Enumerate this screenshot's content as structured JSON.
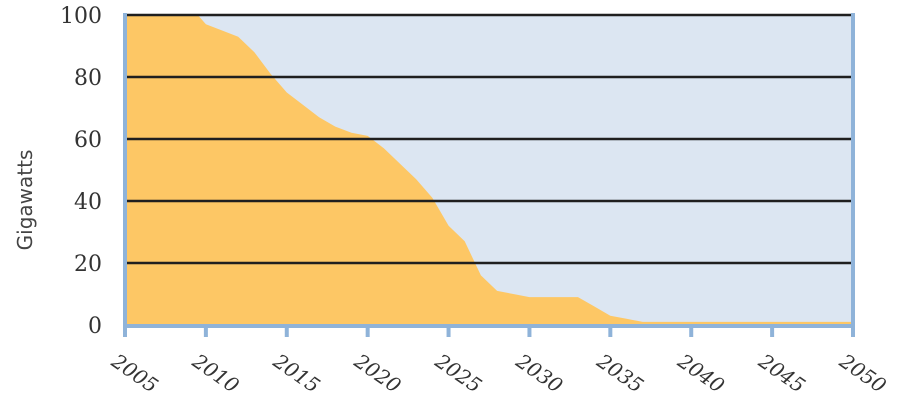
{
  "chart_data": {
    "type": "area",
    "ylabel": "Gigawatts",
    "xlabel": "",
    "title": "",
    "xlim": [
      2005,
      2050
    ],
    "ylim": [
      0,
      100
    ],
    "yticks": [
      0,
      20,
      40,
      60,
      80,
      100
    ],
    "xticks": [
      2005,
      2010,
      2015,
      2020,
      2025,
      2030,
      2035,
      2040,
      2045,
      2050
    ],
    "grid": "horizontal",
    "colors": {
      "area": "#FDC765",
      "background": "#DCE6F2",
      "axis": "#8FB3D9",
      "grid": "#1F1F1F"
    },
    "series": [
      {
        "x": [
          2005,
          2009.5,
          2010,
          2011,
          2012,
          2013,
          2014,
          2015,
          2016,
          2017,
          2018,
          2019,
          2020,
          2021,
          2022,
          2023,
          2024,
          2025,
          2026,
          2027,
          2028,
          2029,
          2030,
          2031,
          2032,
          2033,
          2034,
          2035,
          2036,
          2037,
          2038,
          2040,
          2045,
          2050
        ],
        "y": [
          100,
          100,
          97,
          95,
          93,
          88,
          81,
          75,
          71,
          67,
          64,
          62,
          61,
          57,
          52,
          47,
          41,
          32,
          27,
          16,
          11,
          10,
          9,
          9,
          9,
          9,
          6,
          3,
          2,
          1,
          1,
          1,
          1,
          1
        ]
      }
    ]
  }
}
